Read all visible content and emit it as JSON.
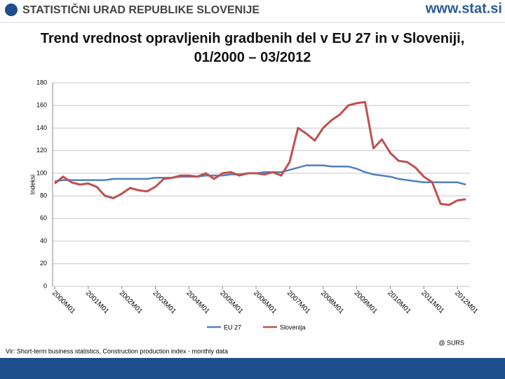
{
  "header": {
    "organization": "STATISTIČNI URAD REPUBLIKE SLOVENIJE",
    "url": "www.stat.si"
  },
  "chart_data": {
    "type": "line",
    "title": "Trend vrednost opravljenih gradbenih del v EU 27 in v Sloveniji, 01/2000 – 03/2012",
    "y_label": "Indeksi",
    "categories": [
      "2000M01",
      null,
      null,
      null,
      "2001M01",
      null,
      null,
      null,
      "2002M01",
      null,
      null,
      null,
      "2003M01",
      null,
      null,
      null,
      "2004M01",
      null,
      null,
      null,
      "2005M01",
      null,
      null,
      null,
      "2006M01",
      null,
      null,
      null,
      "2007M01",
      null,
      null,
      null,
      "2008M01",
      null,
      null,
      null,
      "2009M01",
      null,
      null,
      null,
      "2010M01",
      null,
      null,
      null,
      "2011M01",
      null,
      null,
      null,
      "2012M01",
      null
    ],
    "series": [
      {
        "name": "EU 27",
        "color": "#4f81bd",
        "values": [
          93,
          94,
          94,
          94,
          94,
          94,
          94,
          95,
          95,
          95,
          95,
          95,
          96,
          96,
          96,
          97,
          97,
          97,
          98,
          98,
          98,
          99,
          99,
          100,
          100,
          101,
          101,
          101,
          103,
          105,
          107,
          107,
          107,
          106,
          106,
          106,
          104,
          101,
          99,
          98,
          97,
          95,
          94,
          93,
          92,
          92,
          92,
          92,
          92,
          90
        ]
      },
      {
        "name": "Slovenija",
        "color": "#c0504d",
        "values": [
          91,
          97,
          92,
          90,
          91,
          88,
          80,
          78,
          82,
          87,
          85,
          84,
          88,
          95,
          96,
          98,
          98,
          97,
          100,
          95,
          100,
          101,
          98,
          100,
          100,
          99,
          101,
          98,
          110,
          140,
          135,
          129,
          140,
          147,
          152,
          160,
          162,
          163,
          122,
          130,
          118,
          111,
          110,
          105,
          97,
          92,
          73,
          72,
          76,
          77
        ]
      }
    ],
    "ylim": [
      0,
      180
    ],
    "yticks": [
      0,
      20,
      40,
      60,
      80,
      100,
      120,
      140,
      160,
      180
    ],
    "grid": true
  },
  "footer": {
    "source": "Vir: Short-term business statistics, Construction production index - monthly data",
    "copyright": "@ SURS"
  }
}
